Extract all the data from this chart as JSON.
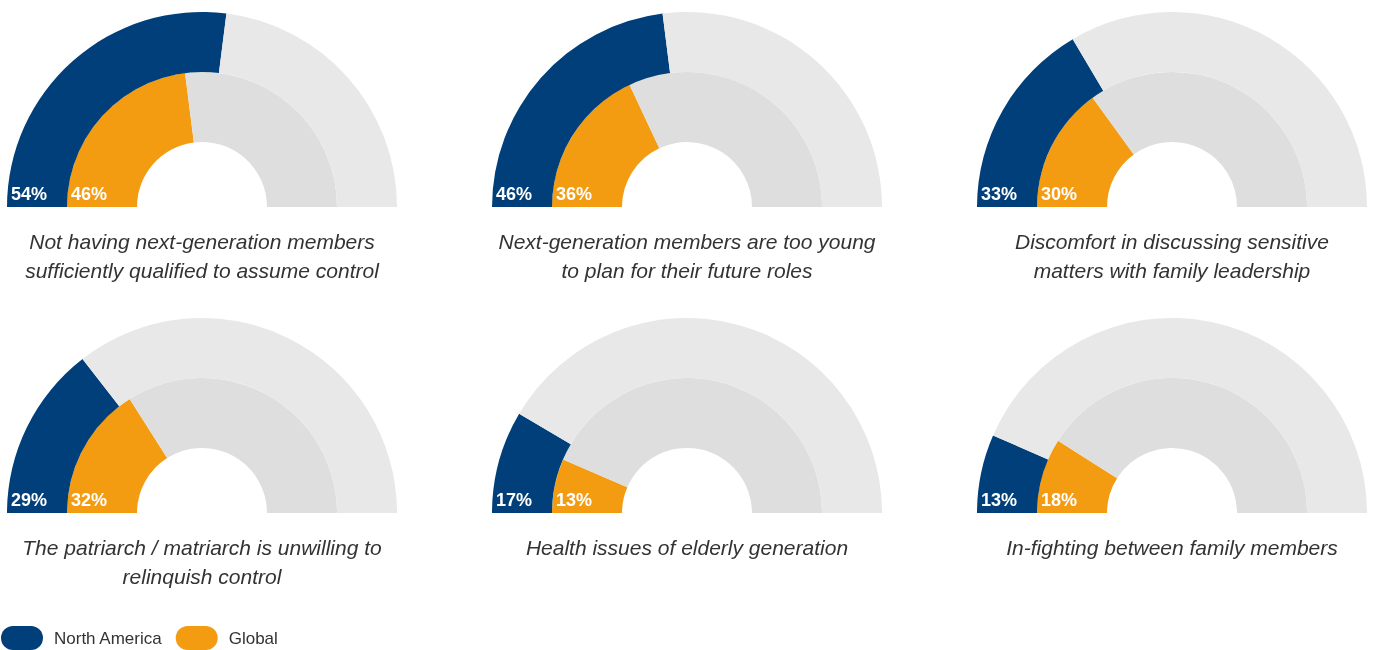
{
  "chart_data": [
    {
      "type": "donut",
      "title": "Not having next-generation members sufficiently qualified to assume control",
      "categories": [
        null,
        null
      ],
      "series": [
        {
          "colors": [
            "#f39c12",
            "#dedede"
          ],
          "values": [
            46,
            54
          ],
          "value_labels": [
            "46%",
            null
          ]
        },
        {
          "colors": [
            "#003f7a",
            "#e8e8e8"
          ],
          "values": [
            54,
            46
          ],
          "value_labels": [
            "54%",
            null
          ]
        }
      ]
    },
    {
      "type": "donut",
      "title": "Next-generation members are too young to plan for their future roles",
      "categories": [
        null,
        null
      ],
      "series": [
        {
          "colors": [
            "#f39c12",
            "#dedede"
          ],
          "values": [
            36,
            64
          ],
          "value_labels": [
            "36%",
            null
          ]
        },
        {
          "colors": [
            "#003f7a",
            "#e8e8e8"
          ],
          "values": [
            46,
            54
          ],
          "value_labels": [
            "46%",
            null
          ]
        }
      ]
    },
    {
      "type": "donut",
      "title": "Discomfort in discussing sensitive matters with family leadership",
      "categories": [
        null,
        null
      ],
      "series": [
        {
          "colors": [
            "#f39c12",
            "#dedede"
          ],
          "values": [
            30,
            70
          ],
          "value_labels": [
            "30%",
            null
          ]
        },
        {
          "colors": [
            "#003f7a",
            "#e8e8e8"
          ],
          "values": [
            33,
            67
          ],
          "value_labels": [
            "33%",
            null
          ]
        }
      ]
    },
    {
      "type": "donut",
      "title": "The patriarch / matriarch is unwilling to relinquish control",
      "categories": [
        null,
        null
      ],
      "legend": "bottom left",
      "series": [
        {
          "name": "Global",
          "colors": [
            "#f39c12",
            "#dedede"
          ],
          "values": [
            32,
            68
          ],
          "value_labels": [
            "32%",
            null
          ]
        },
        {
          "name": "North America",
          "colors": [
            "#003f7a",
            "#e8e8e8"
          ],
          "values": [
            29,
            71
          ],
          "value_labels": [
            "29%",
            null
          ]
        }
      ]
    },
    {
      "type": "donut",
      "title": "Health issues of elderly generation",
      "categories": [
        null,
        null
      ],
      "series": [
        {
          "colors": [
            "#f39c12",
            "#dedede"
          ],
          "values": [
            13,
            87
          ],
          "value_labels": [
            "13%",
            null
          ]
        },
        {
          "colors": [
            "#003f7a",
            "#e8e8e8"
          ],
          "values": [
            17,
            83
          ],
          "value_labels": [
            "17%",
            null
          ]
        }
      ]
    },
    {
      "type": "donut",
      "title": "In-fighting between family members",
      "categories": [
        null,
        null
      ],
      "series": [
        {
          "colors": [
            "#f39c12",
            "#dedede"
          ],
          "values": [
            18,
            82
          ],
          "value_labels": [
            "18%",
            null
          ]
        },
        {
          "colors": [
            "#003f7a",
            "#e8e8e8"
          ],
          "values": [
            13,
            87
          ],
          "value_labels": [
            "13%",
            null
          ]
        }
      ]
    }
  ]
}
